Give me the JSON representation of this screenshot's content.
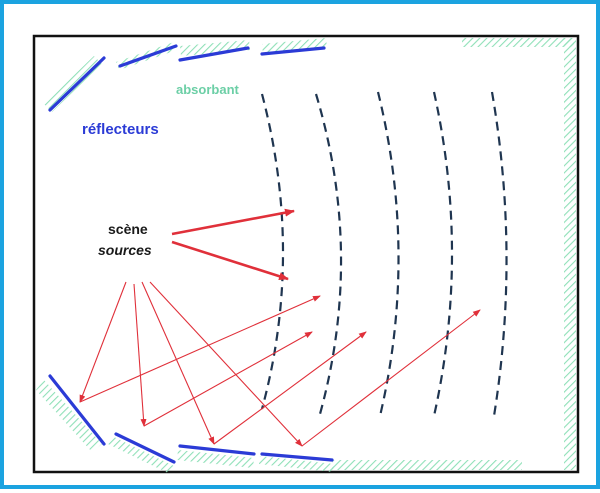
{
  "labels": {
    "absorbant": "absorbant",
    "reflecteurs": "réflecteurs",
    "scene": "scène",
    "sources": "sources"
  },
  "colors": {
    "frame_border": "#1ba3e0",
    "room_outline": "#111111",
    "reflector": "#2b3bd6",
    "absorber_hatch": "#8fe0b8",
    "absorbant_text": "#6ccfa6",
    "wavefront": "#1f3550",
    "ray": "#e0303a",
    "label_dark": "#1a1a1a"
  }
}
